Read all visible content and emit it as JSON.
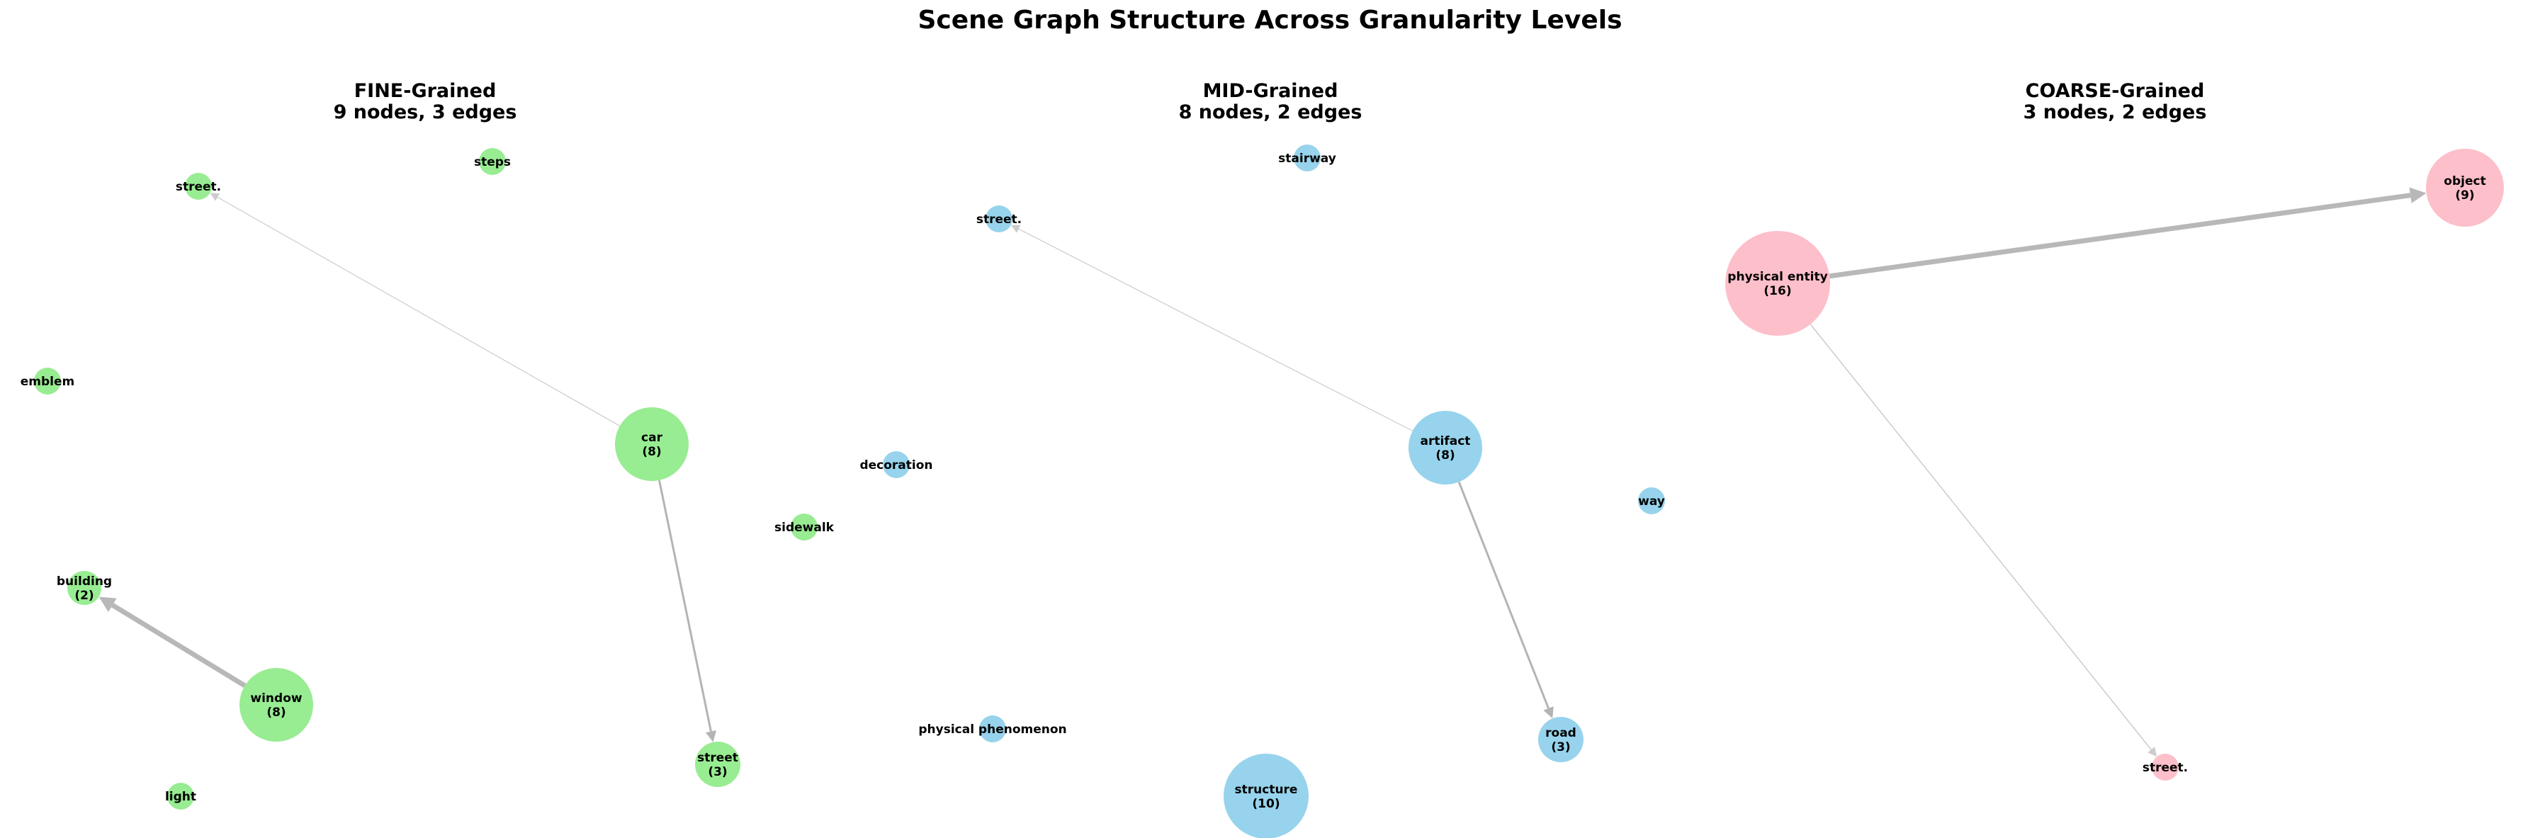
{
  "title": "Scene Graph Structure Across Granularity Levels",
  "panels": [
    {
      "id": "fine",
      "title": "FINE-Grained",
      "subtitle": "9 nodes, 3 edges",
      "color": "#98ec92",
      "nodes": [
        {
          "id": "street_dot",
          "label": "street.",
          "count": null
        },
        {
          "id": "steps",
          "label": "steps",
          "count": null
        },
        {
          "id": "emblem",
          "label": "emblem",
          "count": null
        },
        {
          "id": "car",
          "label": "car",
          "count": 8
        },
        {
          "id": "sidewalk",
          "label": "sidewalk",
          "count": null
        },
        {
          "id": "building",
          "label": "building",
          "count": 2
        },
        {
          "id": "window",
          "label": "window",
          "count": 8
        },
        {
          "id": "street",
          "label": "street",
          "count": 3
        },
        {
          "id": "light",
          "label": "light",
          "count": null
        }
      ],
      "edges": [
        {
          "from": "car",
          "to": "street_dot"
        },
        {
          "from": "car",
          "to": "street"
        },
        {
          "from": "window",
          "to": "building"
        }
      ]
    },
    {
      "id": "mid",
      "title": "MID-Grained",
      "subtitle": "8 nodes, 2 edges",
      "color": "#97d3ec",
      "nodes": [
        {
          "id": "stairway",
          "label": "stairway",
          "count": null
        },
        {
          "id": "street_dot",
          "label": "street.",
          "count": null
        },
        {
          "id": "decoration",
          "label": "decoration",
          "count": null
        },
        {
          "id": "artifact",
          "label": "artifact",
          "count": 8
        },
        {
          "id": "way",
          "label": "way",
          "count": null
        },
        {
          "id": "physical_phenomenon",
          "label": "physical phenomenon",
          "count": null
        },
        {
          "id": "road",
          "label": "road",
          "count": 3
        },
        {
          "id": "structure",
          "label": "structure",
          "count": 10
        }
      ],
      "edges": [
        {
          "from": "artifact",
          "to": "street_dot"
        },
        {
          "from": "artifact",
          "to": "road"
        }
      ]
    },
    {
      "id": "coarse",
      "title": "COARSE-Grained",
      "subtitle": "3 nodes, 2 edges",
      "color": "#fdbfca",
      "nodes": [
        {
          "id": "object",
          "label": "object",
          "count": 9
        },
        {
          "id": "physical_entity",
          "label": "physical entity",
          "count": 16
        },
        {
          "id": "street_dot",
          "label": "street.",
          "count": null
        }
      ],
      "edges": [
        {
          "from": "physical_entity",
          "to": "object"
        },
        {
          "from": "physical_entity",
          "to": "street_dot"
        }
      ]
    }
  ]
}
